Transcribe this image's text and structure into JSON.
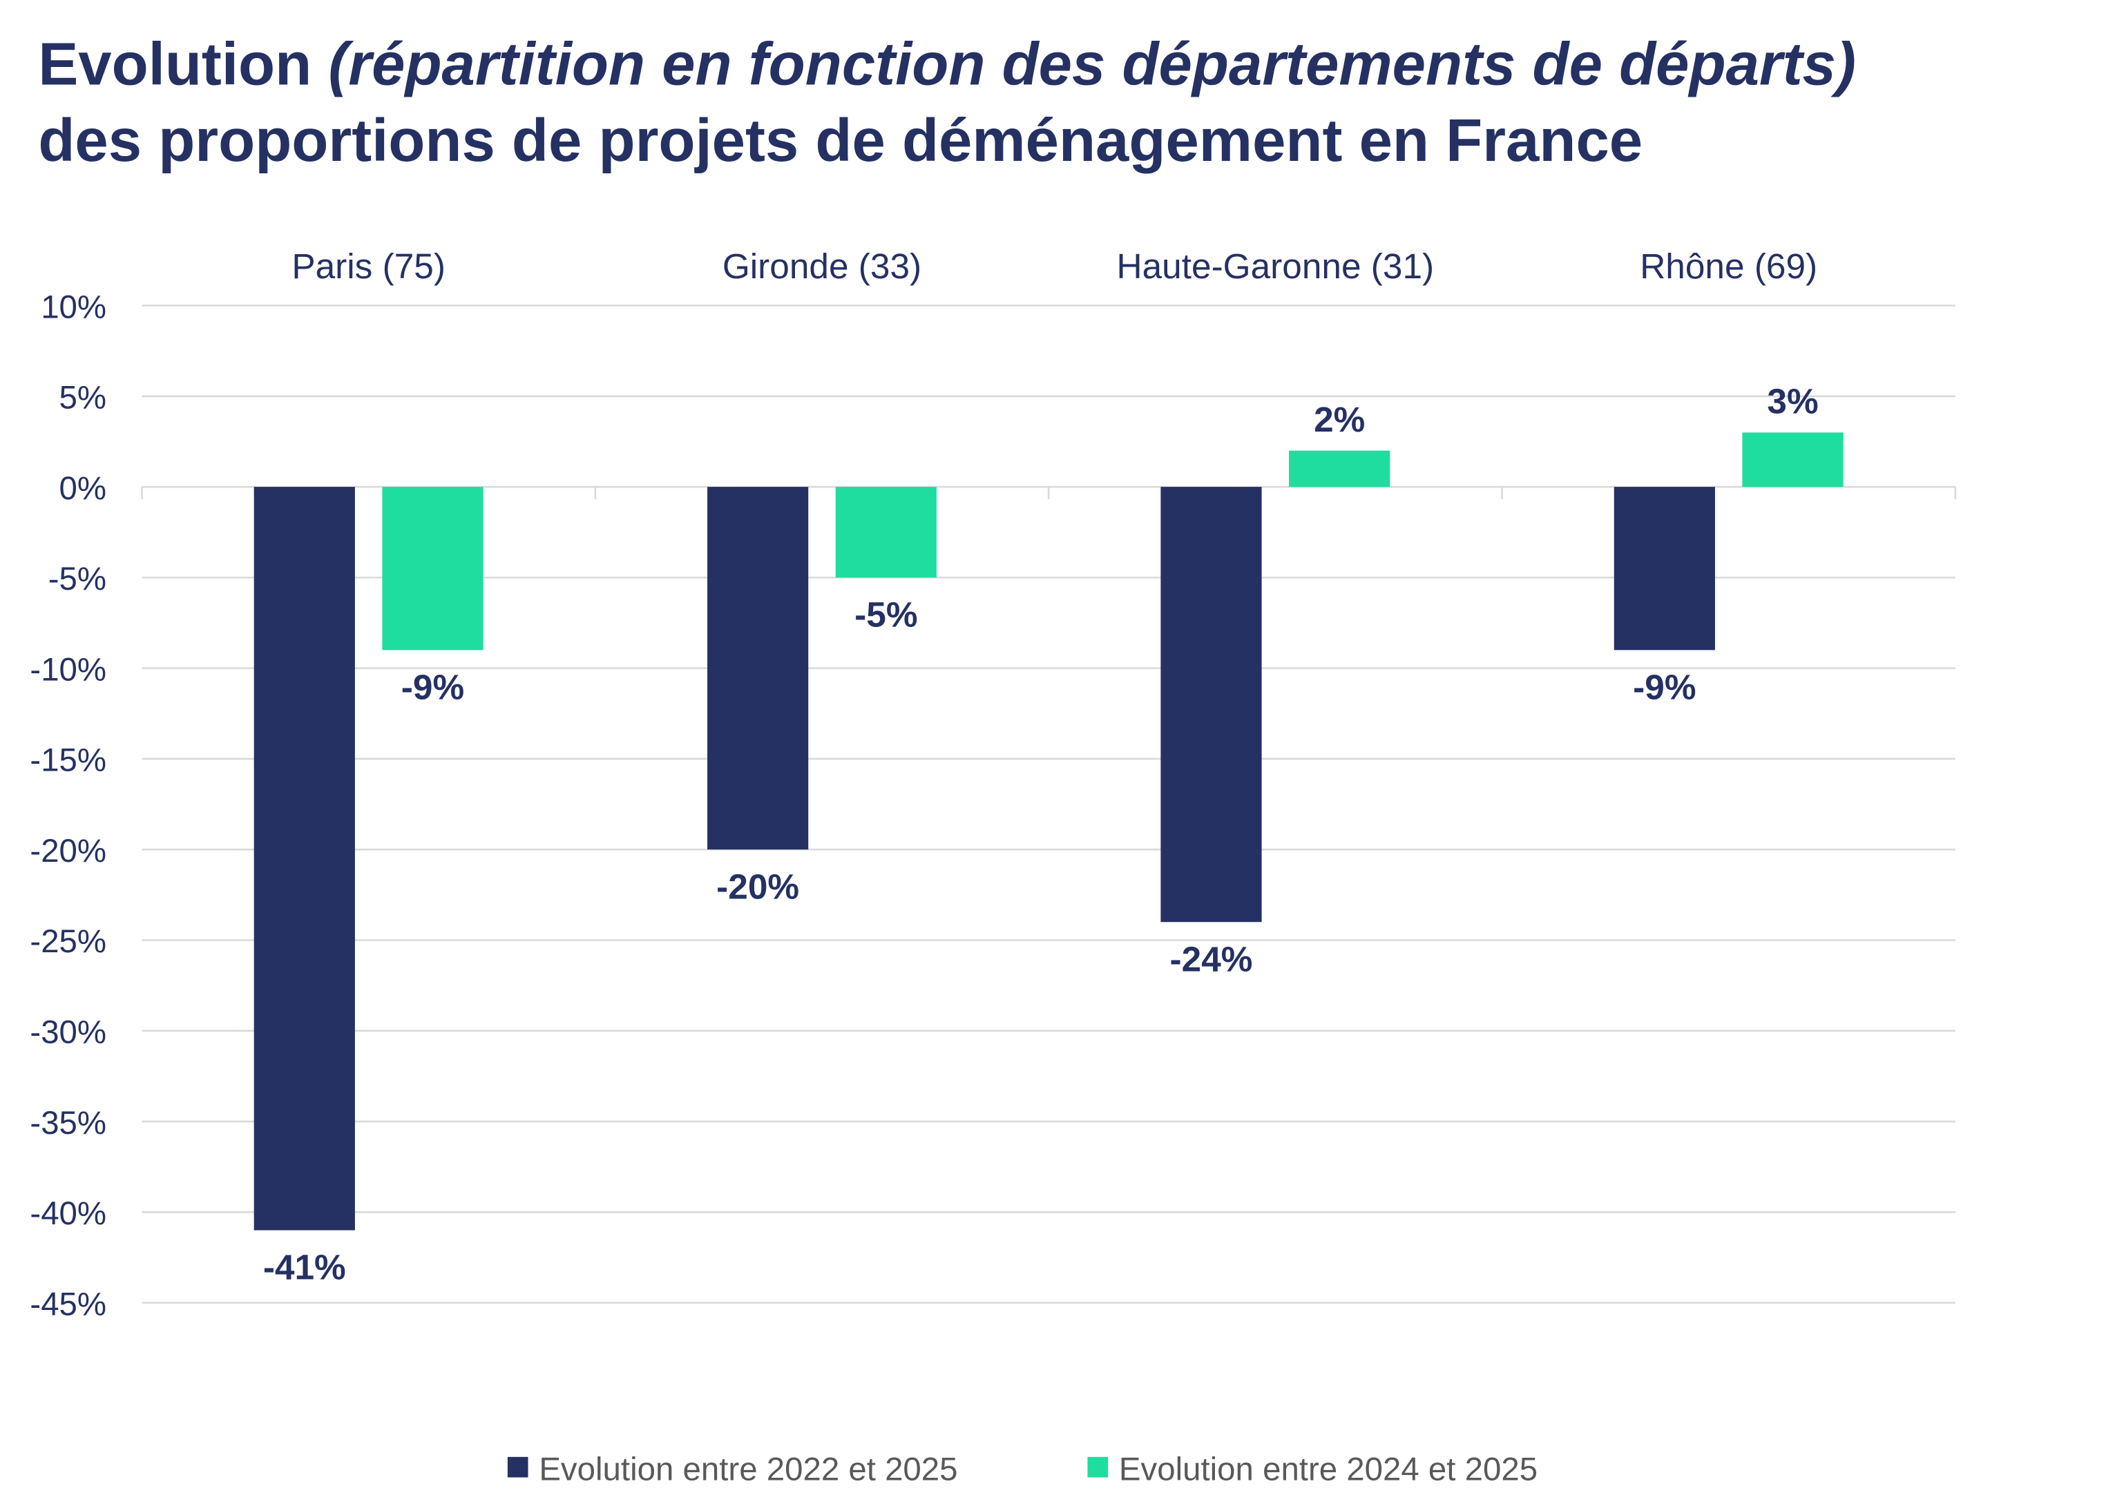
{
  "chart_data": {
    "type": "bar",
    "title_line1_prefix": "Evolution ",
    "title_line1_italic": "(répartition en fonction des départements de départs)",
    "title_line2": "des proportions de projets de déménagement en France",
    "categories": [
      "Paris (75)",
      "Gironde (33)",
      "Haute-Garonne (31)",
      "Rhône (69)"
    ],
    "series": [
      {
        "name": "Evolution entre 2022 et 2025",
        "color": "#253162",
        "values": [
          -41,
          -20,
          -24,
          -9
        ],
        "labels": [
          "-41%",
          "-20%",
          "-24%",
          "-9%"
        ]
      },
      {
        "name": "Evolution entre 2024 et 2025",
        "color": "#1edd9e",
        "values": [
          -9,
          -5,
          2,
          3
        ],
        "labels": [
          "-9%",
          "-5%",
          "2%",
          "3%"
        ]
      }
    ],
    "ylim": [
      -45,
      10
    ],
    "yticks": [
      10,
      5,
      0,
      -5,
      -10,
      -15,
      -20,
      -25,
      -30,
      -35,
      -40,
      -45
    ],
    "ytick_labels": [
      "10%",
      "5%",
      "0%",
      "-5%",
      "-10%",
      "-15%",
      "-20%",
      "-25%",
      "-30%",
      "-35%",
      "-40%",
      "-45%"
    ],
    "category_labels_position": "top",
    "grid": true,
    "legend_position": "bottom",
    "xlabel": "",
    "ylabel": ""
  }
}
